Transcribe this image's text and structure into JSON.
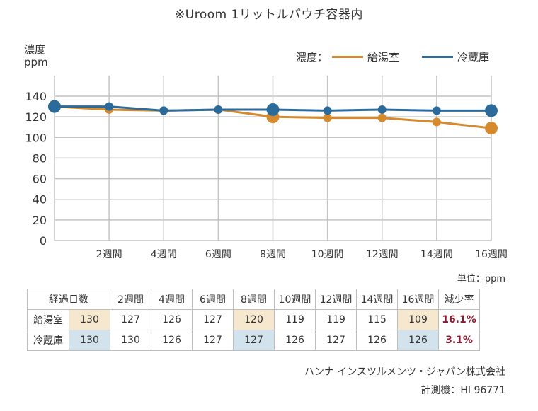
{
  "title": "※Uroom 1リットルパウチ容器内",
  "y_axis_label_line1": "濃度",
  "y_axis_label_line2": "ppm",
  "legend": {
    "prefix": "濃度：",
    "items": [
      {
        "label": "給湯室",
        "color": "#d58a2e"
      },
      {
        "label": "冷蔵庫",
        "color": "#2b6b9c"
      }
    ]
  },
  "chart_data": {
    "type": "line",
    "title": "※Uroom 1リットルパウチ容器内",
    "xlabel": "",
    "ylabel": "濃度 ppm",
    "x": [
      0,
      2,
      4,
      6,
      8,
      10,
      12,
      14,
      16
    ],
    "x_tick_labels": [
      "",
      "2週間",
      "4週間",
      "6週間",
      "8週間",
      "10週間",
      "12週間",
      "14週間",
      "16週間"
    ],
    "y_ticks": [
      0,
      20,
      40,
      60,
      80,
      100,
      120,
      140
    ],
    "ylim": [
      0,
      140
    ],
    "grid": true,
    "legend_position": "top-right",
    "series": [
      {
        "name": "給湯室",
        "color": "#d58a2e",
        "values": [
          130,
          127,
          126,
          127,
          120,
          119,
          119,
          115,
          109
        ],
        "highlight_indices": [
          0,
          4,
          8
        ]
      },
      {
        "name": "冷蔵庫",
        "color": "#2b6b9c",
        "values": [
          130,
          130,
          126,
          127,
          127,
          126,
          127,
          126,
          126
        ],
        "highlight_indices": [
          0,
          4,
          8
        ]
      }
    ]
  },
  "unit_note": "単位：ppm",
  "table": {
    "header_first": "経過日数",
    "columns": [
      "2週間",
      "4週間",
      "6週間",
      "8週間",
      "10週間",
      "12週間",
      "14週間",
      "16週間",
      "減少率"
    ],
    "rows": [
      {
        "label": "給湯室",
        "initial": "130",
        "values": [
          "127",
          "126",
          "127",
          "120",
          "119",
          "119",
          "115",
          "109"
        ],
        "rate": "16.1%"
      },
      {
        "label": "冷蔵庫",
        "initial": "130",
        "values": [
          "130",
          "126",
          "127",
          "127",
          "126",
          "127",
          "126",
          "126"
        ],
        "rate": "3.1%"
      }
    ]
  },
  "footer": {
    "company": "ハンナ インスツルメンツ・ジャパン株式会社",
    "instrument": "計測機：HI 96771"
  }
}
